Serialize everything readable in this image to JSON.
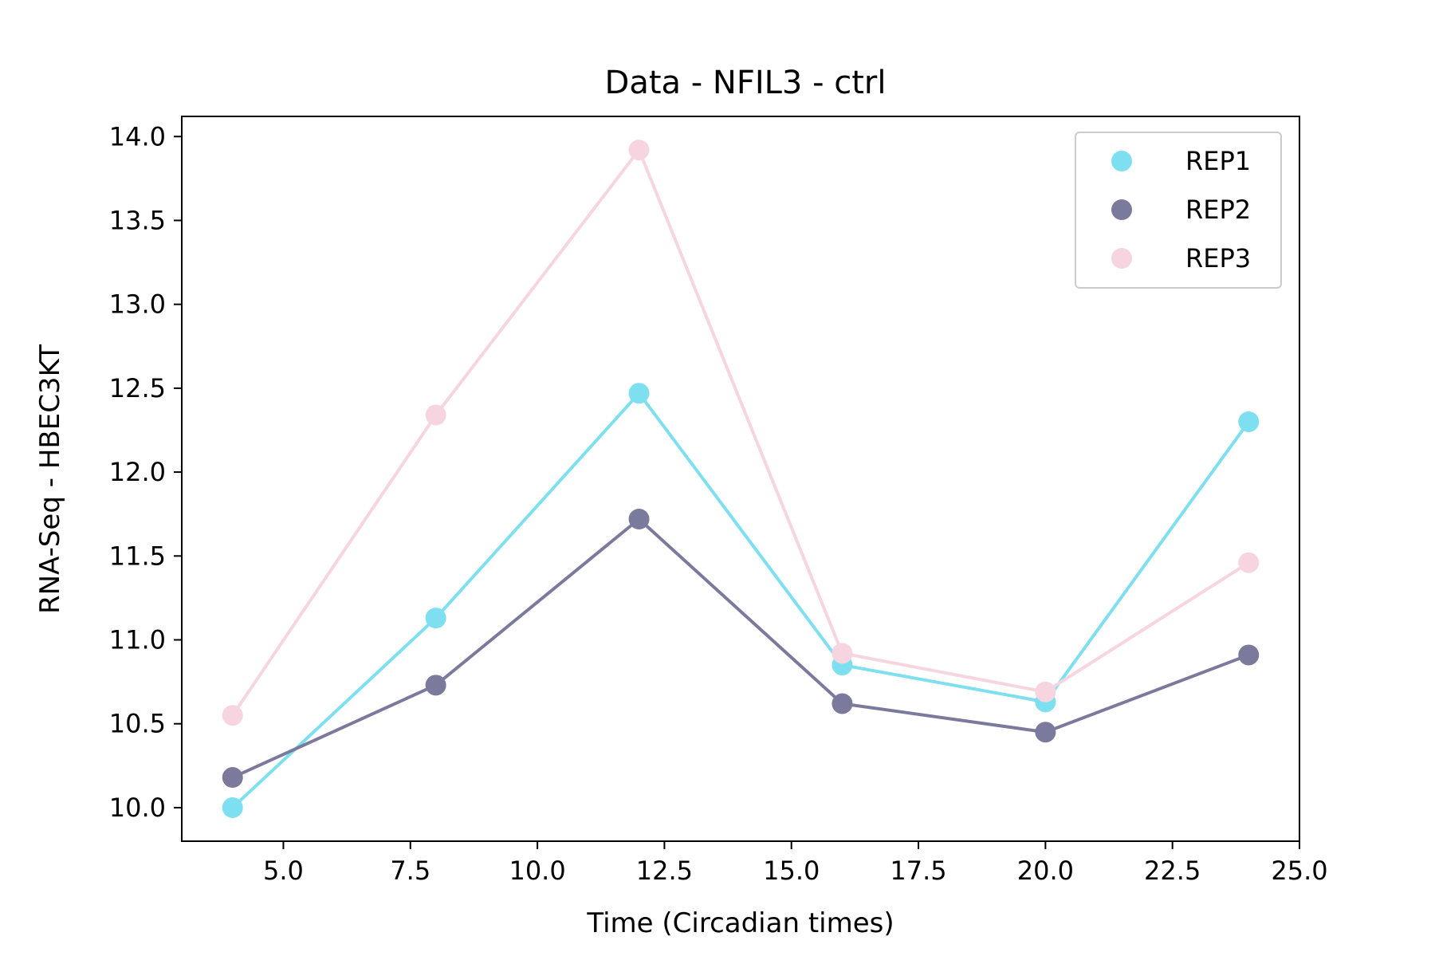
{
  "chart_data": {
    "type": "line",
    "title": "Data - NFIL3 - ctrl",
    "xlabel": "Time (Circadian times)",
    "ylabel": "RNA-Seq - HBEC3KT",
    "xlim": [
      3.0,
      25.0
    ],
    "ylim": [
      9.8,
      14.12
    ],
    "xticks": [
      5.0,
      7.5,
      10.0,
      12.5,
      15.0,
      17.5,
      20.0,
      22.5,
      25.0
    ],
    "xtick_labels": [
      "5.0",
      "7.5",
      "10.0",
      "12.5",
      "15.0",
      "17.5",
      "20.0",
      "22.5",
      "25.0"
    ],
    "yticks": [
      10.0,
      10.5,
      11.0,
      11.5,
      12.0,
      12.5,
      13.0,
      13.5,
      14.0
    ],
    "ytick_labels": [
      "10.0",
      "10.5",
      "11.0",
      "11.5",
      "12.0",
      "12.5",
      "13.0",
      "13.5",
      "14.0"
    ],
    "grid": false,
    "legend_position": "top-right",
    "x": [
      4,
      8,
      12,
      16,
      20,
      24
    ],
    "series": [
      {
        "name": "REP1",
        "color": "#7ddff0",
        "values": [
          10.0,
          11.13,
          12.47,
          10.85,
          10.63,
          12.3
        ]
      },
      {
        "name": "REP2",
        "color": "#7b7a9c",
        "values": [
          10.18,
          10.73,
          11.72,
          10.62,
          10.45,
          10.91
        ]
      },
      {
        "name": "REP3",
        "color": "#f6d5e0",
        "values": [
          10.55,
          12.34,
          13.92,
          10.92,
          10.69,
          11.46
        ]
      }
    ]
  }
}
